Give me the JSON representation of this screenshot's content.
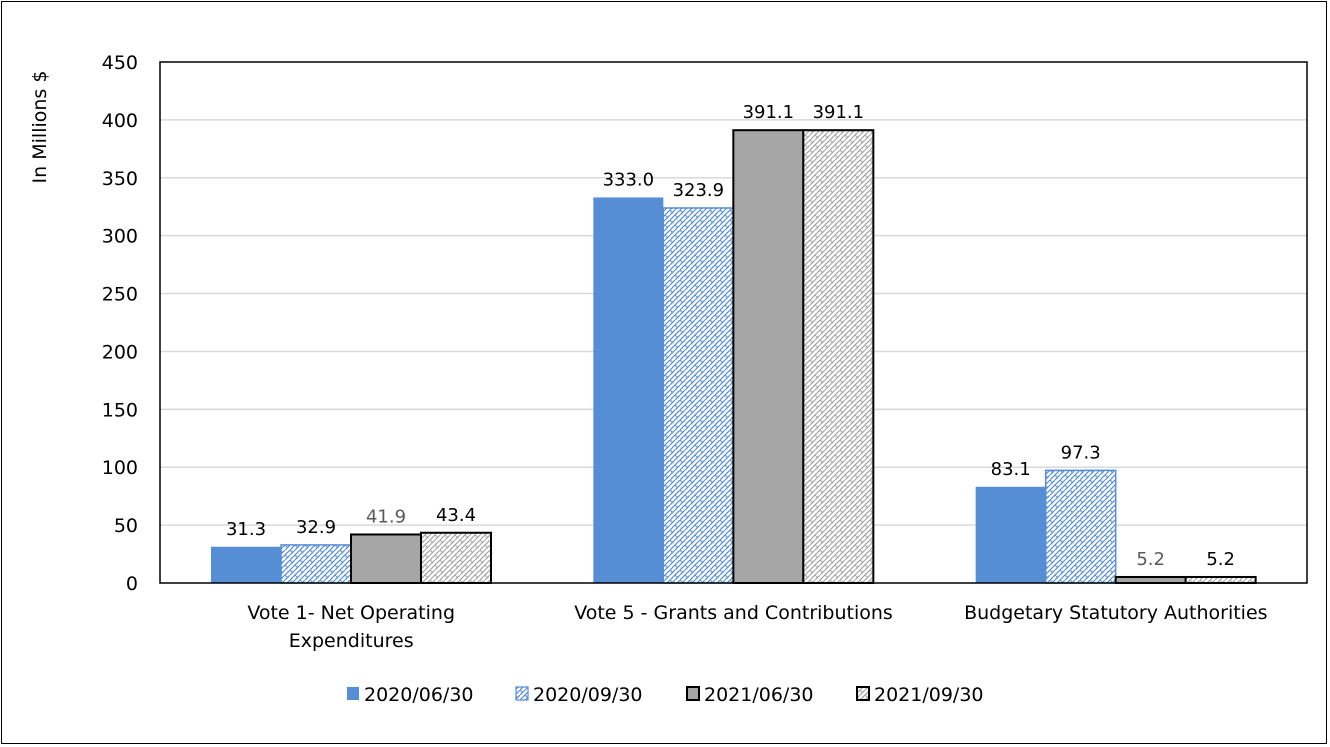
{
  "chart_data": {
    "type": "bar",
    "title": "",
    "xlabel": "",
    "ylabel": "In Millions $",
    "ylim": [
      0,
      450
    ],
    "yticks": [
      0,
      50,
      100,
      150,
      200,
      250,
      300,
      350,
      400,
      450
    ],
    "grid": true,
    "legend_position": "bottom",
    "categories": [
      [
        "Vote 1- Net Operating",
        "Expenditures"
      ],
      [
        "Vote 5 - Grants and Contributions"
      ],
      [
        "Budgetary Statutory Authorities"
      ]
    ],
    "series": [
      {
        "name": "2020/06/30",
        "values": [
          31.3,
          333.0,
          83.1
        ],
        "labels": [
          "31.3",
          "333.0",
          "83.1"
        ],
        "color": "#558ED5",
        "pattern": "solid"
      },
      {
        "name": "2020/09/30",
        "values": [
          32.9,
          323.9,
          97.3
        ],
        "labels": [
          "32.9",
          "323.9",
          "97.3"
        ],
        "color": "#558ED5",
        "pattern": "hatched"
      },
      {
        "name": "2021/06/30",
        "values": [
          41.9,
          391.1,
          5.2
        ],
        "labels": [
          "41.9",
          "391.1",
          "5.2"
        ],
        "color": "#A6A6A6",
        "pattern": "solid-outlined"
      },
      {
        "name": "2021/09/30",
        "values": [
          43.4,
          391.1,
          5.2
        ],
        "labels": [
          "43.4",
          "391.1",
          "5.2"
        ],
        "color": "#A6A6A6",
        "pattern": "hatched-outlined"
      }
    ]
  }
}
